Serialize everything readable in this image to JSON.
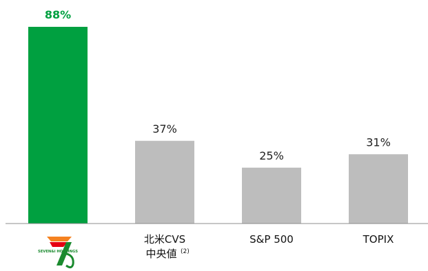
{
  "chart_data": {
    "type": "bar",
    "categories": [
      "SEVEN&i HOLDINGS",
      "北米CVS中央値(2)",
      "S&P 500",
      "TOPIX"
    ],
    "category_label_lines": [
      [],
      [
        "北米CVS",
        "中央値",
        "(2)"
      ],
      [
        "S&P 500"
      ],
      [
        "TOPIX"
      ]
    ],
    "values": [
      88,
      37,
      25,
      31
    ],
    "value_labels": [
      "88%",
      "37%",
      "25%",
      "31%"
    ],
    "unit": "%",
    "ylim": [
      0,
      100
    ],
    "highlight_index": 0,
    "colors": {
      "highlight": "#00a040",
      "default": "#bdbdbd",
      "axis": "#8c8c8c"
    },
    "logo": {
      "text": "SEVEN&i HOLDINGS",
      "icon": "seven-and-i-holdings-logo"
    }
  }
}
